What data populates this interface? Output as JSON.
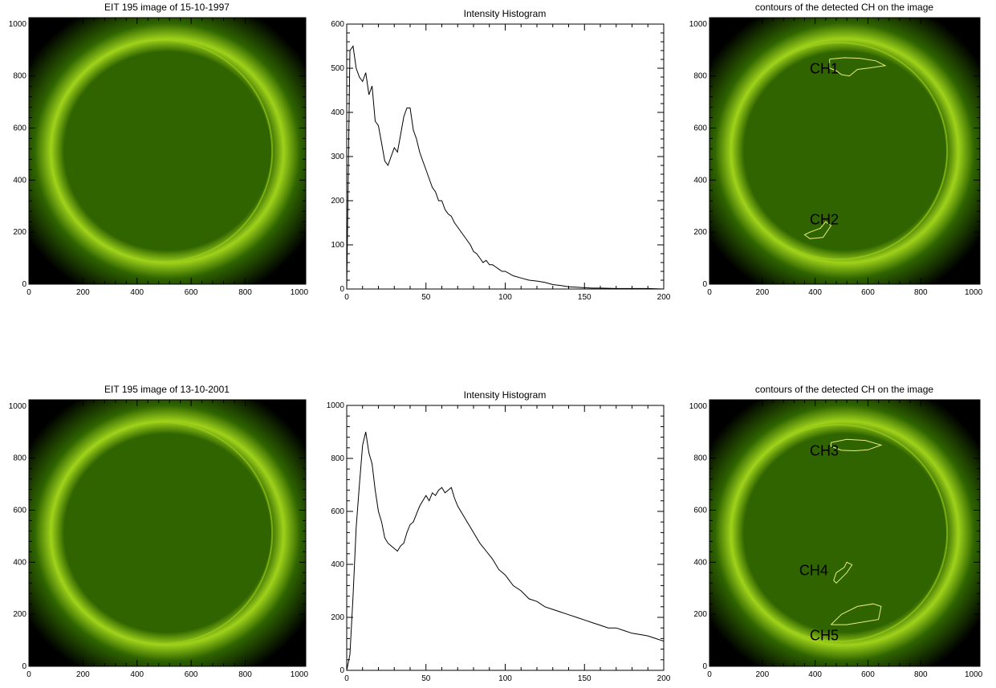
{
  "colors": {
    "sun_dark": "#000000",
    "sun_green": "#2f6400",
    "sun_bright": "#9fd21a",
    "contour": "#e8f07a",
    "line": "#000000"
  },
  "chart_data": [
    {
      "type": "heatmap",
      "title": "EIT 195 image of 15-10-1997",
      "xlim": [
        0,
        1024
      ],
      "ylim": [
        0,
        1024
      ],
      "xticks": [
        0,
        200,
        400,
        600,
        800,
        1000
      ],
      "yticks": [
        0,
        200,
        400,
        600,
        800,
        1000
      ],
      "colormap": "green"
    },
    {
      "type": "line",
      "title": "Intensity Histogram",
      "xlim": [
        0,
        200
      ],
      "ylim": [
        0,
        600
      ],
      "xticks": [
        0,
        50,
        100,
        150,
        200
      ],
      "yticks": [
        0,
        100,
        200,
        300,
        400,
        500,
        600
      ],
      "x": [
        0,
        2,
        4,
        6,
        8,
        10,
        12,
        14,
        16,
        18,
        20,
        22,
        24,
        26,
        28,
        30,
        32,
        34,
        36,
        38,
        40,
        42,
        44,
        46,
        48,
        50,
        52,
        54,
        56,
        58,
        60,
        62,
        64,
        66,
        68,
        70,
        72,
        74,
        76,
        78,
        80,
        82,
        84,
        86,
        88,
        90,
        92,
        94,
        96,
        98,
        100,
        105,
        110,
        115,
        120,
        125,
        130,
        135,
        140,
        145,
        150,
        155,
        160,
        170,
        180,
        190,
        200
      ],
      "y": [
        0,
        540,
        550,
        500,
        480,
        470,
        490,
        440,
        460,
        380,
        370,
        330,
        290,
        280,
        300,
        320,
        310,
        350,
        390,
        410,
        410,
        360,
        340,
        310,
        290,
        270,
        250,
        230,
        220,
        200,
        200,
        180,
        170,
        165,
        150,
        140,
        130,
        120,
        110,
        100,
        85,
        80,
        70,
        60,
        65,
        55,
        55,
        50,
        45,
        40,
        40,
        30,
        25,
        20,
        18,
        15,
        10,
        8,
        5,
        4,
        3,
        2,
        2,
        1,
        1,
        1,
        0
      ]
    },
    {
      "type": "heatmap",
      "title": "contours of the detected CH on the image",
      "xlim": [
        0,
        1024
      ],
      "ylim": [
        0,
        1024
      ],
      "xticks": [
        0,
        200,
        400,
        600,
        800,
        1000
      ],
      "yticks": [
        0,
        200,
        400,
        600,
        800,
        1000
      ],
      "colormap": "green",
      "annotations": [
        {
          "label": "CH1",
          "x": 380,
          "y": 810
        },
        {
          "label": "CH2",
          "x": 380,
          "y": 230
        }
      ],
      "contours": [
        [
          [
            455,
            865
          ],
          [
            510,
            870
          ],
          [
            570,
            868
          ],
          [
            630,
            858
          ],
          [
            665,
            840
          ],
          [
            600,
            830
          ],
          [
            560,
            825
          ],
          [
            530,
            800
          ],
          [
            500,
            805
          ],
          [
            480,
            820
          ],
          [
            455,
            830
          ],
          [
            455,
            865
          ]
        ],
        [
          [
            380,
            200
          ],
          [
            420,
            215
          ],
          [
            440,
            240
          ],
          [
            460,
            225
          ],
          [
            430,
            180
          ],
          [
            380,
            175
          ],
          [
            360,
            190
          ],
          [
            380,
            200
          ]
        ]
      ]
    },
    {
      "type": "heatmap",
      "title": "EIT 195 image of 13-10-2001",
      "xlim": [
        0,
        1024
      ],
      "ylim": [
        0,
        1024
      ],
      "xticks": [
        0,
        200,
        400,
        600,
        800,
        1000
      ],
      "yticks": [
        0,
        200,
        400,
        600,
        800,
        1000
      ],
      "colormap": "green"
    },
    {
      "type": "line",
      "title": "Intensity Histogram",
      "xlim": [
        0,
        200
      ],
      "ylim": [
        0,
        1000
      ],
      "xticks": [
        0,
        50,
        100,
        150,
        200
      ],
      "yticks": [
        0,
        200,
        400,
        600,
        800,
        1000
      ],
      "x": [
        0,
        2,
        4,
        6,
        8,
        10,
        12,
        14,
        16,
        18,
        20,
        22,
        24,
        26,
        28,
        30,
        32,
        34,
        36,
        38,
        40,
        42,
        44,
        46,
        48,
        50,
        52,
        54,
        56,
        58,
        60,
        62,
        64,
        66,
        68,
        70,
        72,
        74,
        76,
        78,
        80,
        84,
        88,
        92,
        96,
        100,
        105,
        110,
        115,
        120,
        125,
        130,
        135,
        140,
        145,
        150,
        155,
        160,
        165,
        170,
        175,
        180,
        185,
        190,
        195,
        200
      ],
      "y": [
        0,
        60,
        280,
        540,
        700,
        850,
        900,
        820,
        780,
        680,
        600,
        560,
        500,
        480,
        470,
        460,
        450,
        470,
        480,
        520,
        550,
        560,
        590,
        620,
        640,
        660,
        640,
        670,
        660,
        680,
        690,
        670,
        680,
        690,
        650,
        620,
        600,
        580,
        560,
        540,
        520,
        480,
        450,
        420,
        380,
        360,
        320,
        300,
        270,
        260,
        240,
        230,
        220,
        210,
        200,
        190,
        180,
        170,
        160,
        160,
        150,
        140,
        135,
        130,
        120,
        110
      ]
    },
    {
      "type": "heatmap",
      "title": "contours of the detected CH on the image",
      "xlim": [
        0,
        1024
      ],
      "ylim": [
        0,
        1024
      ],
      "xticks": [
        0,
        200,
        400,
        600,
        800,
        1000
      ],
      "yticks": [
        0,
        200,
        400,
        600,
        800,
        1000
      ],
      "colormap": "green",
      "annotations": [
        {
          "label": "CH3",
          "x": 380,
          "y": 810
        },
        {
          "label": "CH4",
          "x": 340,
          "y": 350
        },
        {
          "label": "CH5",
          "x": 380,
          "y": 100
        }
      ],
      "contours": [
        [
          [
            460,
            860
          ],
          [
            520,
            872
          ],
          [
            590,
            868
          ],
          [
            650,
            850
          ],
          [
            600,
            832
          ],
          [
            550,
            828
          ],
          [
            500,
            830
          ],
          [
            460,
            845
          ],
          [
            460,
            860
          ]
        ],
        [
          [
            470,
            330
          ],
          [
            480,
            360
          ],
          [
            510,
            380
          ],
          [
            520,
            400
          ],
          [
            540,
            390
          ],
          [
            520,
            360
          ],
          [
            500,
            340
          ],
          [
            480,
            320
          ],
          [
            470,
            330
          ]
        ],
        [
          [
            460,
            160
          ],
          [
            500,
            200
          ],
          [
            560,
            230
          ],
          [
            620,
            240
          ],
          [
            650,
            230
          ],
          [
            640,
            180
          ],
          [
            580,
            170
          ],
          [
            520,
            160
          ],
          [
            460,
            160
          ]
        ]
      ]
    }
  ]
}
